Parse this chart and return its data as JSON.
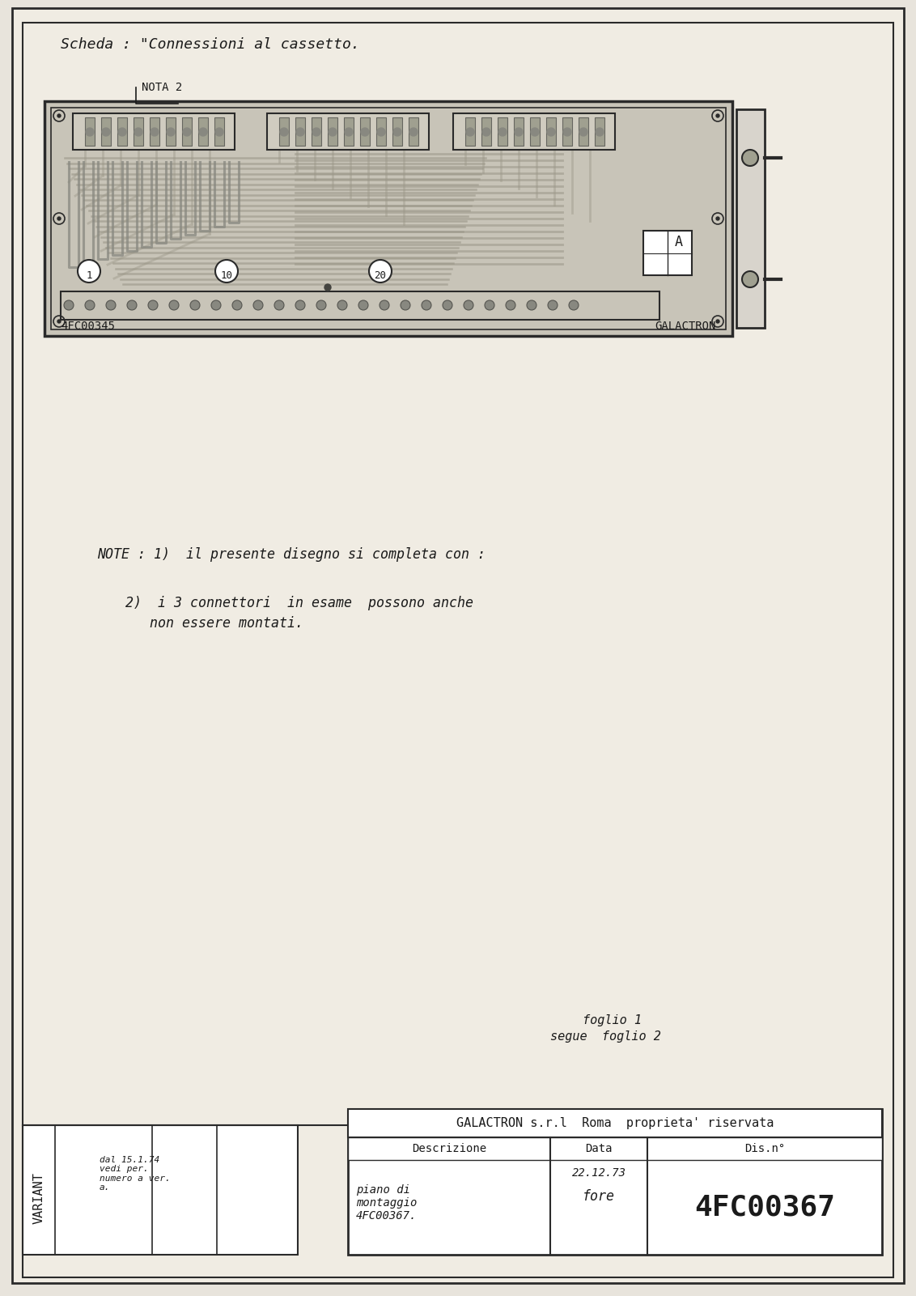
{
  "bg_color": "#e8e4dc",
  "paper_color": "#f0ece3",
  "border_color": "#2a2a2a",
  "line_color": "#1a1a1a",
  "title_text": "Scheda : \"Connessioni al cassetto.",
  "nota_text": "NOTA 2",
  "note1_text": "NOTE : 1)  il presente disegno si completa con :",
  "note2_text": "2)  i 3 connettori  in esame  possono anche",
  "note2b_text": "   non essere montati.",
  "foglio_text": "foglio 1",
  "segue_text": "segue  foglio 2",
  "galactron_text": "GALACTRON s.r.l  Roma  proprieta' riservata",
  "desc_label": "Descrizione",
  "data_label": "Data",
  "disno_label": "Dis.n°",
  "desc_text": "piano di\nmontaggio\n4FC00367.",
  "date_text": "22.12.73",
  "sign_text": "fore",
  "drawing_no": "4FC00367",
  "variant_text": "VARIANT",
  "variant_content": "dal 15.1.74\nvedi per.\nnumero a ver.\na.",
  "board_label_left": "4FC00345",
  "board_label_right": "GALACTRON",
  "pcb_bg": "#c8c4b8",
  "connector_color": "#888880",
  "trace_color": "#b0ac9e",
  "text_color": "#1a1a1a"
}
